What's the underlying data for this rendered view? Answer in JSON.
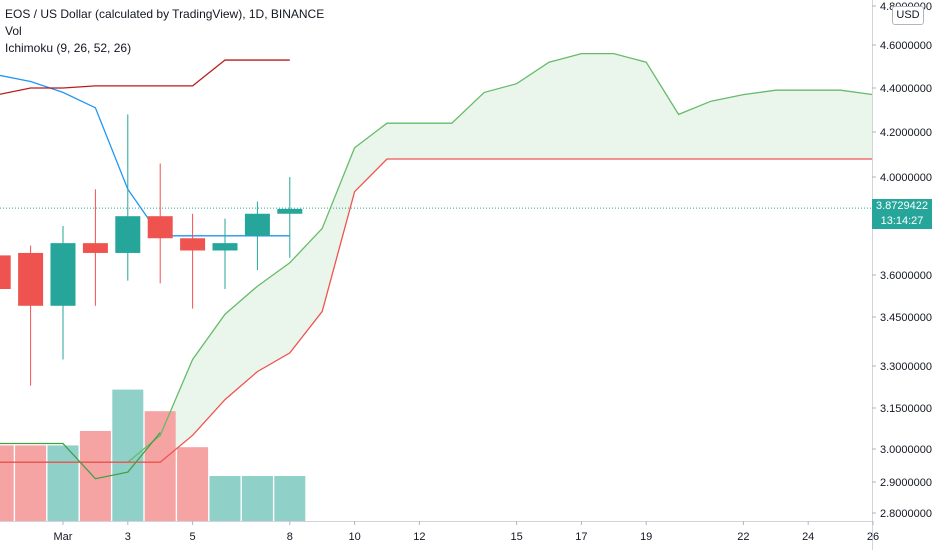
{
  "header": {
    "symbol": "EOS / US Dollar (calculated by TradingView), 1D, BINANCE",
    "vol": "Vol",
    "indicator": "Ichimoku (9, 26, 52, 26)"
  },
  "price_scale": {
    "currency": "USD",
    "last_price": "3.8729422",
    "countdown": "13:14:27"
  },
  "colors": {
    "up": "#26a69a",
    "down": "#ef5350",
    "up_vol": "#8fd0c9",
    "down_vol": "#f5a3a3",
    "cloud": "#e8f5e9",
    "span_a": "#66bb6a",
    "span_b": "#ef5350",
    "conversion": "#2196f3",
    "base": "#b71c1c",
    "lagging": "#43a047"
  },
  "chart_data": {
    "type": "candlestick",
    "x_tick_labels": [
      "Mar",
      "3",
      "5",
      "8",
      "10",
      "12",
      "15",
      "17",
      "19",
      "22",
      "24",
      "26"
    ],
    "x_tick_dates": [
      "2021-03-01",
      "2021-03-03",
      "2021-03-05",
      "2021-03-08",
      "2021-03-10",
      "2021-03-12",
      "2021-03-15",
      "2021-03-17",
      "2021-03-19",
      "2021-03-22",
      "2021-03-24",
      "2021-03-26"
    ],
    "y_ticks": [
      "4.8000000",
      "4.6000000",
      "4.4000000",
      "4.2000000",
      "4.0000000",
      "3.6000000",
      "3.4500000",
      "3.3000000",
      "3.1500000",
      "3.0000000",
      "2.9000000",
      "2.8000000"
    ],
    "candles": [
      {
        "date": "2021-02-27",
        "open": 3.68,
        "high": 3.7,
        "low": 3.55,
        "close": 3.55
      },
      {
        "date": "2021-02-28",
        "open": 3.69,
        "high": 3.72,
        "low": 3.23,
        "close": 3.49
      },
      {
        "date": "2021-03-01",
        "open": 3.49,
        "high": 3.8,
        "low": 3.32,
        "close": 3.73
      },
      {
        "date": "2021-03-02",
        "open": 3.73,
        "high": 3.95,
        "low": 3.49,
        "close": 3.69
      },
      {
        "date": "2021-03-03",
        "open": 3.69,
        "high": 4.28,
        "low": 3.58,
        "close": 3.84
      },
      {
        "date": "2021-03-04",
        "open": 3.84,
        "high": 4.06,
        "low": 3.57,
        "close": 3.75
      },
      {
        "date": "2021-03-05",
        "open": 3.75,
        "high": 3.85,
        "low": 3.48,
        "close": 3.7
      },
      {
        "date": "2021-03-06",
        "open": 3.7,
        "high": 3.83,
        "low": 3.55,
        "close": 3.73
      },
      {
        "date": "2021-03-07",
        "open": 3.76,
        "high": 3.9,
        "low": 3.62,
        "close": 3.85
      },
      {
        "date": "2021-03-08",
        "open": 3.85,
        "high": 4.0,
        "low": 3.67,
        "close": 3.87
      }
    ],
    "volume": [
      {
        "date": "2021-02-27",
        "value": 0.42,
        "up": false
      },
      {
        "date": "2021-02-28",
        "value": 0.42,
        "up": false
      },
      {
        "date": "2021-03-01",
        "value": 0.42,
        "up": true
      },
      {
        "date": "2021-03-02",
        "value": 0.5,
        "up": false
      },
      {
        "date": "2021-03-03",
        "value": 0.73,
        "up": true
      },
      {
        "date": "2021-03-04",
        "value": 0.61,
        "up": false
      },
      {
        "date": "2021-03-05",
        "value": 0.41,
        "up": false
      },
      {
        "date": "2021-03-06",
        "value": 0.25,
        "up": true
      },
      {
        "date": "2021-03-07",
        "value": 0.25,
        "up": true
      },
      {
        "date": "2021-03-08",
        "value": 0.25,
        "up": true
      }
    ],
    "conversion_line": [
      {
        "date": "2021-02-27",
        "value": 4.46
      },
      {
        "date": "2021-02-28",
        "value": 4.43
      },
      {
        "date": "2021-03-01",
        "value": 4.38
      },
      {
        "date": "2021-03-02",
        "value": 4.31
      },
      {
        "date": "2021-03-03",
        "value": 3.95
      },
      {
        "date": "2021-03-04",
        "value": 3.76
      },
      {
        "date": "2021-03-05",
        "value": 3.76
      },
      {
        "date": "2021-03-06",
        "value": 3.76
      },
      {
        "date": "2021-03-07",
        "value": 3.76
      },
      {
        "date": "2021-03-08",
        "value": 3.76
      }
    ],
    "base_line": [
      {
        "date": "2021-02-27",
        "value": 4.37
      },
      {
        "date": "2021-02-28",
        "value": 4.4
      },
      {
        "date": "2021-03-01",
        "value": 4.4
      },
      {
        "date": "2021-03-02",
        "value": 4.41
      },
      {
        "date": "2021-03-05",
        "value": 4.41
      },
      {
        "date": "2021-03-06",
        "value": 4.53
      },
      {
        "date": "2021-03-08",
        "value": 4.53
      }
    ],
    "lagging_span": [
      {
        "date": "2021-02-27",
        "value": 3.02
      },
      {
        "date": "2021-03-01",
        "value": 3.02
      },
      {
        "date": "2021-03-02",
        "value": 2.91
      },
      {
        "date": "2021-03-03",
        "value": 2.93
      },
      {
        "date": "2021-03-04",
        "value": 3.06
      }
    ],
    "span_a": [
      {
        "date": "2021-02-27",
        "value": 2.96
      },
      {
        "date": "2021-03-03",
        "value": 2.96
      },
      {
        "date": "2021-03-04",
        "value": 3.05
      },
      {
        "date": "2021-03-05",
        "value": 3.32
      },
      {
        "date": "2021-03-06",
        "value": 3.46
      },
      {
        "date": "2021-03-07",
        "value": 3.56
      },
      {
        "date": "2021-03-08",
        "value": 3.65
      },
      {
        "date": "2021-03-09",
        "value": 3.79
      },
      {
        "date": "2021-03-10",
        "value": 4.13
      },
      {
        "date": "2021-03-11",
        "value": 4.24
      },
      {
        "date": "2021-03-13",
        "value": 4.24
      },
      {
        "date": "2021-03-14",
        "value": 4.38
      },
      {
        "date": "2021-03-15",
        "value": 4.42
      },
      {
        "date": "2021-03-16",
        "value": 4.52
      },
      {
        "date": "2021-03-17",
        "value": 4.56
      },
      {
        "date": "2021-03-18",
        "value": 4.56
      },
      {
        "date": "2021-03-19",
        "value": 4.52
      },
      {
        "date": "2021-03-20",
        "value": 4.28
      },
      {
        "date": "2021-03-21",
        "value": 4.34
      },
      {
        "date": "2021-03-22",
        "value": 4.37
      },
      {
        "date": "2021-03-23",
        "value": 4.39
      },
      {
        "date": "2021-03-25",
        "value": 4.39
      },
      {
        "date": "2021-03-26",
        "value": 4.37
      }
    ],
    "span_b": [
      {
        "date": "2021-02-27",
        "value": 2.96
      },
      {
        "date": "2021-03-04",
        "value": 2.96
      },
      {
        "date": "2021-03-05",
        "value": 3.05
      },
      {
        "date": "2021-03-06",
        "value": 3.18
      },
      {
        "date": "2021-03-07",
        "value": 3.28
      },
      {
        "date": "2021-03-08",
        "value": 3.34
      },
      {
        "date": "2021-03-09",
        "value": 3.47
      },
      {
        "date": "2021-03-10",
        "value": 3.94
      },
      {
        "date": "2021-03-11",
        "value": 4.08
      },
      {
        "date": "2021-03-26",
        "value": 4.08
      }
    ],
    "last_price": 3.8729422
  }
}
